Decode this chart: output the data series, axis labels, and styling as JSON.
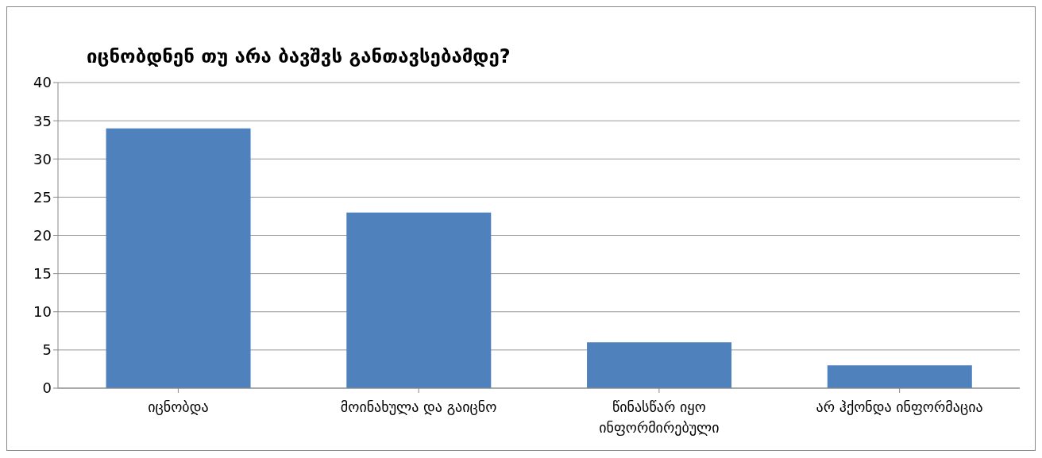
{
  "chart_data": {
    "type": "bar",
    "title": "იცნობდნენ თუ არა ბავშვს განთავსებამდე?",
    "categories": [
      "იცნობდა",
      "მოინახულა და გაიცნო",
      "წინასწარ იყო ინფორმირებული",
      "არ ჰქონდა ინფორმაცია"
    ],
    "values": [
      34,
      23,
      6,
      3
    ],
    "color": "#4f81bd",
    "ylim": [
      0,
      40
    ],
    "yticks": [
      0,
      5,
      10,
      15,
      20,
      25,
      30,
      35,
      40
    ],
    "grid": "y"
  }
}
